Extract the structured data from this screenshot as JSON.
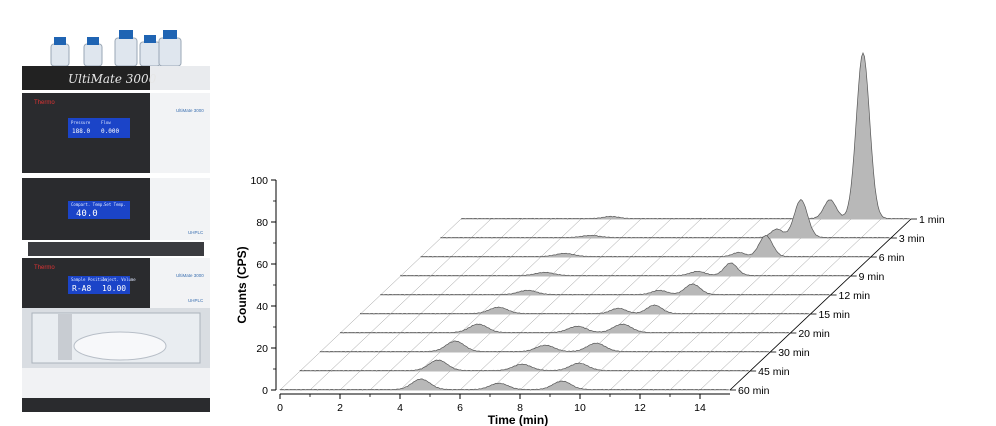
{
  "instrument": {
    "brand_label": "UltiMate 3000",
    "maker": "Thermo",
    "module_labels": [
      "UltiMate 3000",
      "UltiMate 3000"
    ],
    "uhplc_badge": "UHPLC",
    "pump_display": {
      "left_header": "Pressure",
      "left_value": "188.0",
      "right_header": "Flow",
      "right_value": "0.000"
    },
    "oven_display": {
      "header": "Compart. Temp.",
      "value": "40.0",
      "right_header": "Set Temp."
    },
    "sampler_display": {
      "header": "Sample Position",
      "value": "R-A8",
      "right_header": "Inject. Volume",
      "right_value": "10.00"
    }
  },
  "chart_data": {
    "type": "area",
    "xlabel": "Time (min)",
    "ylabel": "Counts (CPS)",
    "xlim": [
      0,
      15
    ],
    "ylim": [
      0,
      100
    ],
    "x_ticks": [
      "0",
      "2",
      "4",
      "6",
      "8",
      "10",
      "12",
      "14"
    ],
    "y_ticks": [
      "0",
      "20",
      "40",
      "60",
      "80",
      "100"
    ],
    "grid": true,
    "series": [
      {
        "name": "1 min",
        "peaks": [
          [
            13.4,
            79,
            0.22
          ],
          [
            12.3,
            9,
            0.2
          ],
          [
            5.0,
            1,
            0.25
          ]
        ]
      },
      {
        "name": "3 min",
        "peaks": [
          [
            12.0,
            18,
            0.22
          ],
          [
            11.2,
            4,
            0.2
          ],
          [
            5.0,
            1,
            0.3
          ]
        ]
      },
      {
        "name": "6 min",
        "peaks": [
          [
            11.5,
            10,
            0.22
          ],
          [
            10.6,
            2,
            0.2
          ],
          [
            4.8,
            1.5,
            0.3
          ]
        ]
      },
      {
        "name": "9 min",
        "peaks": [
          [
            11.0,
            6,
            0.22
          ],
          [
            9.9,
            2,
            0.25
          ],
          [
            4.8,
            1.5,
            0.3
          ]
        ]
      },
      {
        "name": "12 min",
        "peaks": [
          [
            10.4,
            5,
            0.25
          ],
          [
            9.3,
            2,
            0.25
          ],
          [
            4.9,
            2,
            0.3
          ]
        ]
      },
      {
        "name": "15 min",
        "peaks": [
          [
            9.8,
            4,
            0.25
          ],
          [
            8.6,
            2.5,
            0.25
          ],
          [
            4.6,
            3,
            0.3
          ]
        ]
      },
      {
        "name": "20 min",
        "peaks": [
          [
            9.4,
            4,
            0.3
          ],
          [
            7.9,
            3,
            0.3
          ],
          [
            4.6,
            4,
            0.3
          ]
        ]
      },
      {
        "name": "30 min",
        "peaks": [
          [
            9.2,
            4,
            0.3
          ],
          [
            7.5,
            3,
            0.3
          ],
          [
            4.5,
            5,
            0.3
          ]
        ]
      },
      {
        "name": "45 min",
        "peaks": [
          [
            9.3,
            3.5,
            0.3
          ],
          [
            7.4,
            3,
            0.3
          ],
          [
            4.6,
            5,
            0.3
          ]
        ]
      },
      {
        "name": "60 min",
        "peaks": [
          [
            9.4,
            4,
            0.3
          ],
          [
            7.3,
            3,
            0.3
          ],
          [
            4.7,
            5,
            0.3
          ]
        ]
      }
    ]
  }
}
